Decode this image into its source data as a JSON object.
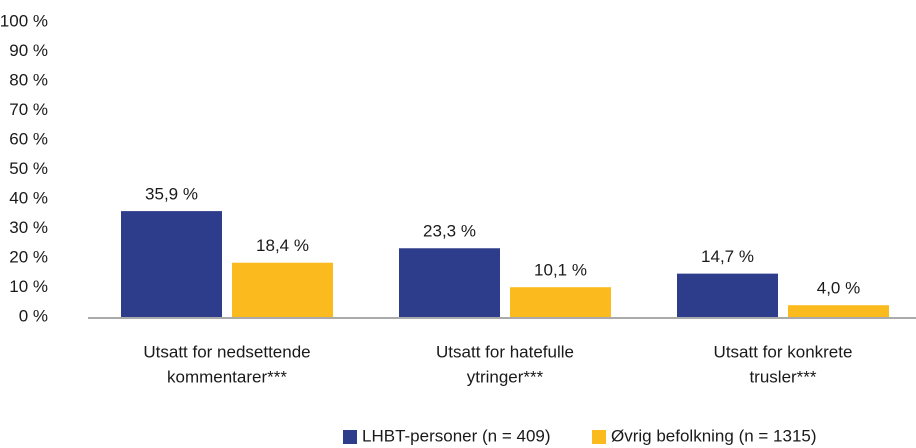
{
  "chart_data": {
    "type": "bar",
    "categories": [
      [
        "Utsatt for nedsettende",
        "kommentarer***"
      ],
      [
        "Utsatt for hatefulle",
        "ytringer***"
      ],
      [
        "Utsatt for konkrete",
        "trusler***"
      ]
    ],
    "series": [
      {
        "name": "LHBT-personer (n = 409)",
        "color": "#2e3d8b",
        "values": [
          35.9,
          23.3,
          14.7
        ],
        "value_labels": [
          "35,9 %",
          "23,3 %",
          "14,7 %"
        ]
      },
      {
        "name": "Øvrig befolkning (n = 1315)",
        "color": "#fbbb1f",
        "values": [
          18.4,
          10.1,
          4.0
        ],
        "value_labels": [
          "18,4 %",
          "10,1 %",
          "4,0 %"
        ]
      }
    ],
    "ylim": [
      0,
      100
    ],
    "yticks": [
      {
        "value": 0,
        "label": "0 %"
      },
      {
        "value": 10,
        "label": "10 %"
      },
      {
        "value": 20,
        "label": "20 %"
      },
      {
        "value": 30,
        "label": "30 %"
      },
      {
        "value": 40,
        "label": "40 %"
      },
      {
        "value": 50,
        "label": "50 %"
      },
      {
        "value": 60,
        "label": "60 %"
      },
      {
        "value": 70,
        "label": "70 %"
      },
      {
        "value": 80,
        "label": "80 %"
      },
      {
        "value": 90,
        "label": "90 %"
      },
      {
        "value": 100,
        "label": "100 %"
      }
    ],
    "grid": false,
    "legend": "bottom"
  }
}
